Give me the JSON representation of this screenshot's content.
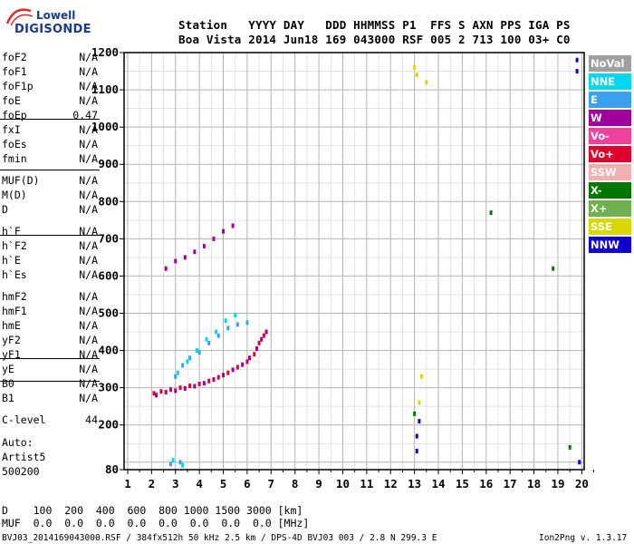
{
  "logo": {
    "line1": "Lowell",
    "line2": "DIGISONDE"
  },
  "header": {
    "line1": "Station   YYYY DAY   DDD HHMMSS P1  FFS S AXN PPS IGA PS",
    "line2": "Boa Vista 2014 Jun18 169 043000 RSF 005 2 713 100 03+ C0"
  },
  "params": [
    {
      "name": "foF2",
      "value": "N/A"
    },
    {
      "name": "foF1",
      "value": "N/A"
    },
    {
      "name": "foF1p",
      "value": "N/A"
    },
    {
      "name": "foE",
      "value": "N/A"
    },
    {
      "name": "foEp",
      "value": "0.47"
    },
    {
      "name": "fxI",
      "value": "N/A"
    },
    {
      "name": "foEs",
      "value": "N/A"
    },
    {
      "name": "fmin",
      "value": "N/A"
    },
    {
      "name": "MUF(D)",
      "value": "N/A"
    },
    {
      "name": "M(D)",
      "value": "N/A"
    },
    {
      "name": "D",
      "value": "N/A"
    },
    {
      "name": "h`F",
      "value": "N/A"
    },
    {
      "name": "h`F2",
      "value": "N/A"
    },
    {
      "name": "h`E",
      "value": "N/A"
    },
    {
      "name": "h`Es",
      "value": "N/A"
    },
    {
      "name": "hmF2",
      "value": "N/A"
    },
    {
      "name": "hmF1",
      "value": "N/A"
    },
    {
      "name": "hmE",
      "value": "N/A"
    },
    {
      "name": "yF2",
      "value": "N/A"
    },
    {
      "name": "yF1",
      "value": "N/A"
    },
    {
      "name": "yE",
      "value": "N/A"
    },
    {
      "name": "B0",
      "value": "N/A"
    },
    {
      "name": "B1",
      "value": "N/A"
    },
    {
      "name": "C-level",
      "value": "44"
    }
  ],
  "auto": {
    "line1": "Auto:",
    "line2": "Artist5",
    "line3": "500200"
  },
  "legend": [
    {
      "label": "NoVal",
      "color": "#a0a0a0"
    },
    {
      "label": "NNE",
      "color": "#00d7f0"
    },
    {
      "label": "E",
      "color": "#3ca0f0"
    },
    {
      "label": "W",
      "color": "#a0009c"
    },
    {
      "label": "Vo-",
      "color": "#f0409c"
    },
    {
      "label": "Vo+",
      "color": "#e0002c"
    },
    {
      "label": "SSW",
      "color": "#f0b0b0"
    },
    {
      "label": "X-",
      "color": "#007800"
    },
    {
      "label": "X+",
      "color": "#70b050"
    },
    {
      "label": "SSE",
      "color": "#d8d800"
    },
    {
      "label": "NNW",
      "color": "#1000d0"
    }
  ],
  "footer": {
    "row_d": "D    100  200  400  600  800 1000 1500 3000 [km]",
    "row_muf": "MUF  0.0  0.0  0.0  0.0  0.0  0.0  0.0  0.0 [MHz]",
    "file": "BVJ03_2014169043000.RSF / 384fx512h 50 kHz 2.5 km / DPS-4D BVJ03 003 / 2.8 N 299.3 E",
    "version": "Ion2Png v. 1.3.17"
  },
  "chart_data": {
    "type": "scatter",
    "x_ticks": [
      1,
      2,
      3,
      4,
      5,
      6,
      7,
      8,
      9,
      10,
      11,
      12,
      13,
      14,
      15,
      16,
      17,
      18,
      19,
      20
    ],
    "y_ticks": [
      80,
      200,
      300,
      400,
      500,
      600,
      700,
      800,
      900,
      1000,
      1100,
      1200
    ],
    "xlim": [
      0.85,
      20.1
    ],
    "ylim": [
      80,
      1200
    ],
    "grid": true,
    "legend_position": "right",
    "xlabel": "",
    "ylabel": "",
    "series": [
      {
        "color": "#e0002c",
        "points": [
          [
            2.1,
            285
          ],
          [
            2.4,
            290
          ],
          [
            2.8,
            295
          ],
          [
            3.2,
            300
          ],
          [
            3.6,
            305
          ],
          [
            4.0,
            310
          ],
          [
            4.4,
            318
          ],
          [
            4.8,
            328
          ],
          [
            5.2,
            340
          ],
          [
            5.6,
            355
          ],
          [
            6.0,
            370
          ],
          [
            6.3,
            390
          ],
          [
            6.5,
            420
          ],
          [
            6.7,
            440
          ]
        ]
      },
      {
        "color": "#a0009c",
        "points": [
          [
            2.2,
            280
          ],
          [
            2.6,
            288
          ],
          [
            3.0,
            292
          ],
          [
            3.4,
            298
          ],
          [
            3.8,
            304
          ],
          [
            4.2,
            312
          ],
          [
            4.6,
            322
          ],
          [
            5.0,
            334
          ],
          [
            5.4,
            348
          ],
          [
            5.8,
            362
          ],
          [
            6.1,
            380
          ],
          [
            6.4,
            405
          ],
          [
            6.6,
            430
          ],
          [
            6.8,
            450
          ],
          [
            2.6,
            620
          ],
          [
            3.0,
            640
          ],
          [
            3.4,
            650
          ],
          [
            3.8,
            665
          ],
          [
            4.2,
            680
          ],
          [
            4.6,
            700
          ],
          [
            5.0,
            720
          ],
          [
            5.4,
            735
          ]
        ]
      },
      {
        "color": "#3ca0f0",
        "points": [
          [
            3.0,
            330
          ],
          [
            3.3,
            360
          ],
          [
            3.6,
            380
          ],
          [
            4.0,
            395
          ],
          [
            4.4,
            420
          ],
          [
            4.8,
            440
          ],
          [
            5.2,
            460
          ],
          [
            5.6,
            470
          ],
          [
            6.0,
            475
          ],
          [
            2.8,
            95
          ],
          [
            3.2,
            100
          ]
        ]
      },
      {
        "color": "#00d7f0",
        "points": [
          [
            3.1,
            340
          ],
          [
            3.5,
            370
          ],
          [
            3.9,
            400
          ],
          [
            4.3,
            430
          ],
          [
            4.7,
            450
          ],
          [
            5.1,
            480
          ],
          [
            5.5,
            495
          ],
          [
            2.9,
            105
          ],
          [
            3.3,
            92
          ]
        ]
      },
      {
        "color": "#1000d0",
        "points": [
          [
            13.1,
            170
          ],
          [
            13.1,
            130
          ],
          [
            13.2,
            210
          ],
          [
            19.8,
            1180
          ],
          [
            19.8,
            1150
          ],
          [
            19.9,
            100
          ]
        ]
      },
      {
        "color": "#d8d800",
        "points": [
          [
            13.0,
            1160
          ],
          [
            13.1,
            1140
          ],
          [
            13.5,
            1120
          ],
          [
            13.3,
            330
          ],
          [
            13.2,
            260
          ]
        ]
      },
      {
        "color": "#007800",
        "points": [
          [
            13.0,
            230
          ],
          [
            18.8,
            620
          ],
          [
            19.5,
            140
          ],
          [
            16.2,
            770
          ]
        ]
      }
    ]
  }
}
